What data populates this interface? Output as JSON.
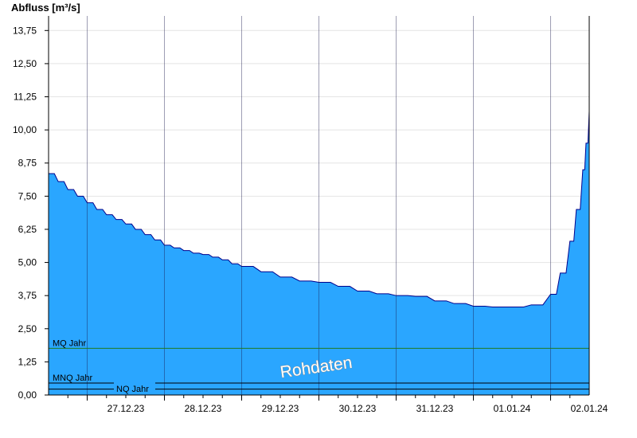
{
  "chart_data": {
    "type": "area",
    "ylabel": "Abfluss [m³/s]",
    "ylim": [
      0,
      14.3
    ],
    "yticks": [
      "0,00",
      "1,25",
      "2,50",
      "3,75",
      "5,00",
      "6,25",
      "7,50",
      "8,75",
      "10,00",
      "11,25",
      "12,50",
      "13,75"
    ],
    "ytick_values": [
      0,
      1.25,
      2.5,
      3.75,
      5.0,
      6.25,
      7.5,
      8.75,
      10.0,
      11.25,
      12.5,
      13.75
    ],
    "xlim": [
      "2023-12-26T12:00",
      "2024-01-02T12:00"
    ],
    "xticks": [
      "27.12.23",
      "28.12.23",
      "29.12.23",
      "30.12.23",
      "31.12.23",
      "01.01.24",
      "02.01.24"
    ],
    "x": [
      "2023-12-26T12:00",
      "2023-12-26T15:00",
      "2023-12-26T18:00",
      "2023-12-26T21:00",
      "2023-12-27T00:00",
      "2023-12-27T03:00",
      "2023-12-27T06:00",
      "2023-12-27T09:00",
      "2023-12-27T12:00",
      "2023-12-27T15:00",
      "2023-12-27T18:00",
      "2023-12-27T21:00",
      "2023-12-28T00:00",
      "2023-12-28T03:00",
      "2023-12-28T06:00",
      "2023-12-28T09:00",
      "2023-12-28T12:00",
      "2023-12-28T15:00",
      "2023-12-28T18:00",
      "2023-12-28T21:00",
      "2023-12-29T00:00",
      "2023-12-29T06:00",
      "2023-12-29T12:00",
      "2023-12-29T18:00",
      "2023-12-30T00:00",
      "2023-12-30T06:00",
      "2023-12-30T12:00",
      "2023-12-30T18:00",
      "2023-12-31T00:00",
      "2023-12-31T06:00",
      "2023-12-31T12:00",
      "2023-12-31T18:00",
      "2024-01-01T00:00",
      "2024-01-01T06:00",
      "2024-01-01T12:00",
      "2024-01-01T18:00",
      "2024-01-02T00:00",
      "2024-01-02T03:00",
      "2024-01-02T06:00",
      "2024-01-02T08:00",
      "2024-01-02T10:00",
      "2024-01-02T11:00",
      "2024-01-02T12:00"
    ],
    "series": [
      {
        "values": [
          8.35,
          8.05,
          7.75,
          7.5,
          7.25,
          7.0,
          6.8,
          6.62,
          6.45,
          6.25,
          6.05,
          5.85,
          5.65,
          5.55,
          5.45,
          5.35,
          5.3,
          5.2,
          5.1,
          4.95,
          4.85,
          4.65,
          4.45,
          4.3,
          4.25,
          4.1,
          3.92,
          3.82,
          3.75,
          3.72,
          3.55,
          3.45,
          3.35,
          3.32,
          3.32,
          3.4,
          3.8,
          4.6,
          5.8,
          7.0,
          8.5,
          9.5,
          10.7
        ]
      }
    ],
    "reference_lines": [
      {
        "label": "MQ Jahr",
        "value": 1.76,
        "color": "#207a20"
      },
      {
        "label": "MNQ Jahr",
        "value": 0.45,
        "color": "#000000"
      },
      {
        "label": "NQ Jahr",
        "value": 0.22,
        "color": "#000000"
      }
    ],
    "watermark": "Rohdaten",
    "grid": true,
    "fill_color": "#2aa6ff",
    "line_color": "#00008b"
  }
}
